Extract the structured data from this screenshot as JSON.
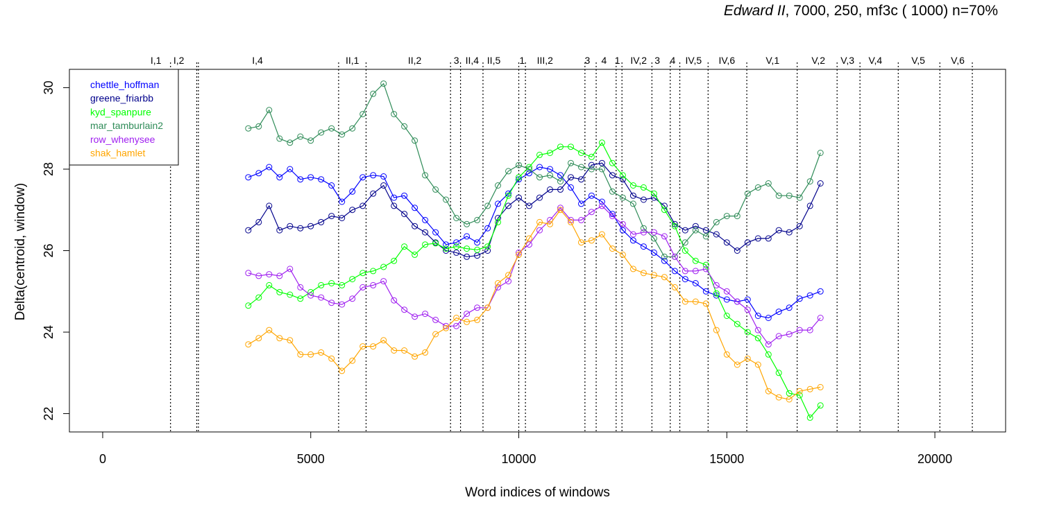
{
  "chart_data": {
    "type": "line",
    "title_italic": "Edward II",
    "title_rest": ", 7000, 250, mf3c ( 1000)   n=70%",
    "xlabel": "Word indices of windows",
    "ylabel": "Delta(centroid, window)",
    "xlim": [
      -800,
      21700
    ],
    "ylim": [
      21.55,
      30.45
    ],
    "xticks": [
      0,
      5000,
      10000,
      15000,
      20000
    ],
    "xtick_labels": [
      "0",
      "5000",
      "10000",
      "15000",
      "20000"
    ],
    "yticks": [
      22,
      24,
      26,
      28,
      30
    ],
    "ytick_labels": [
      "22",
      "24",
      "26",
      "28",
      "30"
    ],
    "legend_position": "top-left",
    "scene_boundaries": [
      1630,
      2260,
      2300,
      5670,
      6330,
      8360,
      8600,
      9140,
      10000,
      10160,
      11590,
      11860,
      12340,
      12480,
      13200,
      13640,
      13870,
      14550,
      15480,
      16690,
      17650,
      18200,
      19120,
      20120,
      20900
    ],
    "scene_labels": [
      {
        "label": "I,1",
        "x": 1280
      },
      {
        "label": "I,2",
        "x": 1830
      },
      {
        "label": "I,4",
        "x": 3720
      },
      {
        "label": "II,1",
        "x": 6000
      },
      {
        "label": "II,2",
        "x": 7500
      },
      {
        "label": "3",
        "x": 8500
      },
      {
        "label": "II,4",
        "x": 8880
      },
      {
        "label": "II,5",
        "x": 9400
      },
      {
        "label": "1",
        "x": 10080
      },
      {
        "label": "III,2",
        "x": 10630
      },
      {
        "label": "3",
        "x": 11650
      },
      {
        "label": "4",
        "x": 12050
      },
      {
        "label": "1",
        "x": 12370
      },
      {
        "label": "IV,2",
        "x": 12880
      },
      {
        "label": "3",
        "x": 13330
      },
      {
        "label": "4",
        "x": 13700
      },
      {
        "label": "IV,5",
        "x": 14200
      },
      {
        "label": "IV,6",
        "x": 15000
      },
      {
        "label": "V,1",
        "x": 16100
      },
      {
        "label": "V,2",
        "x": 17200
      },
      {
        "label": "V,3",
        "x": 17900
      },
      {
        "label": "V,4",
        "x": 18570
      },
      {
        "label": "V,5",
        "x": 19600
      },
      {
        "label": "V,6",
        "x": 20550
      }
    ],
    "x": [
      3500,
      3750,
      4000,
      4250,
      4500,
      4750,
      5000,
      5250,
      5500,
      5750,
      6000,
      6250,
      6500,
      6750,
      7000,
      7250,
      7500,
      7750,
      8000,
      8250,
      8500,
      8750,
      9000,
      9250,
      9500,
      9750,
      10000,
      10250,
      10500,
      10750,
      11000,
      11250,
      11500,
      11750,
      12000,
      12250,
      12500,
      12750,
      13000,
      13250,
      13500,
      13750,
      14000,
      14250,
      14500,
      14750,
      15000,
      15250,
      15500,
      15750,
      16000,
      16250,
      16500,
      16750,
      17000,
      17250
    ],
    "series": [
      {
        "name": "chettle_hoffman",
        "color": "#0000ff",
        "values": [
          27.8,
          27.9,
          28.05,
          27.8,
          28.0,
          27.75,
          27.8,
          27.75,
          27.6,
          27.2,
          27.45,
          27.8,
          27.85,
          27.82,
          27.3,
          27.35,
          27.05,
          26.75,
          26.45,
          26.15,
          26.2,
          26.35,
          26.2,
          26.55,
          27.15,
          27.4,
          27.75,
          27.9,
          28.05,
          28.0,
          27.85,
          27.55,
          27.15,
          27.35,
          27.2,
          26.9,
          26.5,
          26.25,
          26.1,
          25.95,
          25.75,
          25.5,
          25.3,
          25.2,
          25.0,
          24.9,
          24.8,
          24.75,
          24.8,
          24.4,
          24.35,
          24.5,
          24.6,
          24.82,
          24.9,
          25.0
        ]
      },
      {
        "name": "greene_friarbb",
        "color": "#00008b",
        "values": [
          26.5,
          26.7,
          27.1,
          26.5,
          26.6,
          26.55,
          26.6,
          26.7,
          26.85,
          26.8,
          27.0,
          27.1,
          27.4,
          27.6,
          27.1,
          26.9,
          26.6,
          26.45,
          26.2,
          26.0,
          25.95,
          25.85,
          25.88,
          26.0,
          26.8,
          27.1,
          27.3,
          27.1,
          27.3,
          27.5,
          27.5,
          27.8,
          27.75,
          28.1,
          28.15,
          27.85,
          27.75,
          27.35,
          27.25,
          27.3,
          27.1,
          26.65,
          26.5,
          26.6,
          26.5,
          26.4,
          26.2,
          26.0,
          26.2,
          26.3,
          26.3,
          26.5,
          26.45,
          26.6,
          27.1,
          27.65
        ]
      },
      {
        "name": "kyd_spanpure",
        "color": "#00ff00",
        "values": [
          24.65,
          24.85,
          25.15,
          24.98,
          24.92,
          24.82,
          24.98,
          25.15,
          25.2,
          25.15,
          25.3,
          25.45,
          25.5,
          25.6,
          25.75,
          26.1,
          25.9,
          26.15,
          26.18,
          26.05,
          26.1,
          26.05,
          26.02,
          26.1,
          26.7,
          27.35,
          27.8,
          28.05,
          28.35,
          28.4,
          28.55,
          28.55,
          28.4,
          28.3,
          28.65,
          28.15,
          27.85,
          27.6,
          27.55,
          27.4,
          27.0,
          26.6,
          26.0,
          25.75,
          25.65,
          24.95,
          24.4,
          24.2,
          24.0,
          23.85,
          23.45,
          23.0,
          22.5,
          22.45,
          21.9,
          22.2
        ]
      },
      {
        "name": "mar_tamburlain2",
        "color": "#2e8b57",
        "values": [
          29.0,
          29.05,
          29.45,
          28.75,
          28.65,
          28.8,
          28.7,
          28.9,
          29.0,
          28.85,
          29.0,
          29.35,
          29.85,
          30.1,
          29.35,
          29.05,
          28.7,
          27.85,
          27.5,
          27.25,
          26.8,
          26.65,
          26.75,
          27.1,
          27.6,
          27.95,
          28.1,
          28.0,
          27.8,
          27.85,
          27.7,
          28.15,
          28.05,
          28.0,
          28.0,
          27.45,
          27.3,
          27.15,
          26.55,
          26.3,
          25.85,
          25.85,
          26.2,
          26.5,
          26.35,
          26.7,
          26.85,
          26.85,
          27.4,
          27.55,
          27.65,
          27.35,
          27.35,
          27.3,
          27.7,
          28.4
        ]
      },
      {
        "name": "row_whenysee",
        "color": "#a020f0",
        "values": [
          25.45,
          25.38,
          25.42,
          25.38,
          25.55,
          25.1,
          24.9,
          24.85,
          24.72,
          24.68,
          24.82,
          25.1,
          25.15,
          25.25,
          24.78,
          24.55,
          24.38,
          24.45,
          24.3,
          24.15,
          24.15,
          24.45,
          24.6,
          24.6,
          25.1,
          25.25,
          25.95,
          26.15,
          26.5,
          26.75,
          27.05,
          26.75,
          26.75,
          26.95,
          27.1,
          26.85,
          26.65,
          26.4,
          26.45,
          26.45,
          26.35,
          25.85,
          25.5,
          25.5,
          25.55,
          25.15,
          25.0,
          24.75,
          24.55,
          24.05,
          23.7,
          23.9,
          23.95,
          24.05,
          24.05,
          24.35
        ]
      },
      {
        "name": "shak_hamlet",
        "color": "#ffa500",
        "values": [
          23.7,
          23.85,
          24.05,
          23.85,
          23.8,
          23.45,
          23.45,
          23.5,
          23.35,
          23.05,
          23.3,
          23.65,
          23.65,
          23.8,
          23.55,
          23.55,
          23.4,
          23.5,
          23.95,
          24.1,
          24.35,
          24.25,
          24.3,
          24.6,
          25.2,
          25.4,
          25.9,
          26.3,
          26.7,
          26.65,
          27.0,
          26.7,
          26.2,
          26.25,
          26.4,
          26.05,
          25.9,
          25.55,
          25.45,
          25.4,
          25.35,
          25.1,
          24.75,
          24.75,
          24.7,
          24.05,
          23.45,
          23.2,
          23.35,
          23.2,
          22.55,
          22.4,
          22.35,
          22.55,
          22.6,
          22.65
        ]
      }
    ]
  }
}
